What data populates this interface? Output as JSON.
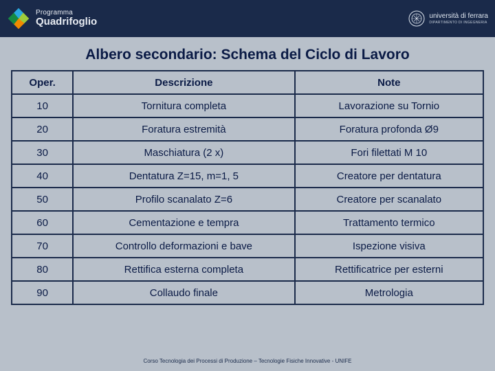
{
  "header": {
    "programma": "Programma",
    "quadrifoglio": "Quadrifoglio",
    "clover_colors": {
      "top": "#2aa9e0",
      "right": "#9fcc3b",
      "bottom": "#f18a00",
      "left": "#168a43"
    },
    "university_name": "università di ferrara",
    "university_sub": "DIPARTIMENTO DI INGEGNERIA"
  },
  "title": "Albero secondario: Schema del Ciclo di Lavoro",
  "work_cycle_table": {
    "type": "table",
    "columns": [
      "Oper.",
      "Descrizione",
      "Note"
    ],
    "col_widths_pct": [
      13,
      47,
      40
    ],
    "border_color": "#1a2a4a",
    "background_color": "#b8c0ca",
    "text_color": "#0a1a45",
    "font_size": 15,
    "rows": [
      [
        "10",
        "Tornitura completa",
        "Lavorazione su Tornio"
      ],
      [
        "20",
        "Foratura estremità",
        "Foratura profonda Ø9"
      ],
      [
        "30",
        "Maschiatura (2 x)",
        "Fori filettati M 10"
      ],
      [
        "40",
        "Dentatura Z=15, m=1, 5",
        "Creatore per dentatura"
      ],
      [
        "50",
        "Profilo scanalato Z=6",
        "Creatore per scanalato"
      ],
      [
        "60",
        "Cementazione e tempra",
        "Trattamento termico"
      ],
      [
        "70",
        "Controllo deformazioni e bave",
        "Ispezione visiva"
      ],
      [
        "80",
        "Rettifica esterna completa",
        "Rettificatrice per esterni"
      ],
      [
        "90",
        "Collaudo finale",
        "Metrologia"
      ]
    ]
  },
  "footer": "Corso Tecnologia dei Processi di Produzione – Tecnologie Fisiche Innovative - UNIFE",
  "palette": {
    "page_bg": "#b8c0ca",
    "header_bg": "#1a2a4a",
    "text_dark": "#0a1a45"
  }
}
